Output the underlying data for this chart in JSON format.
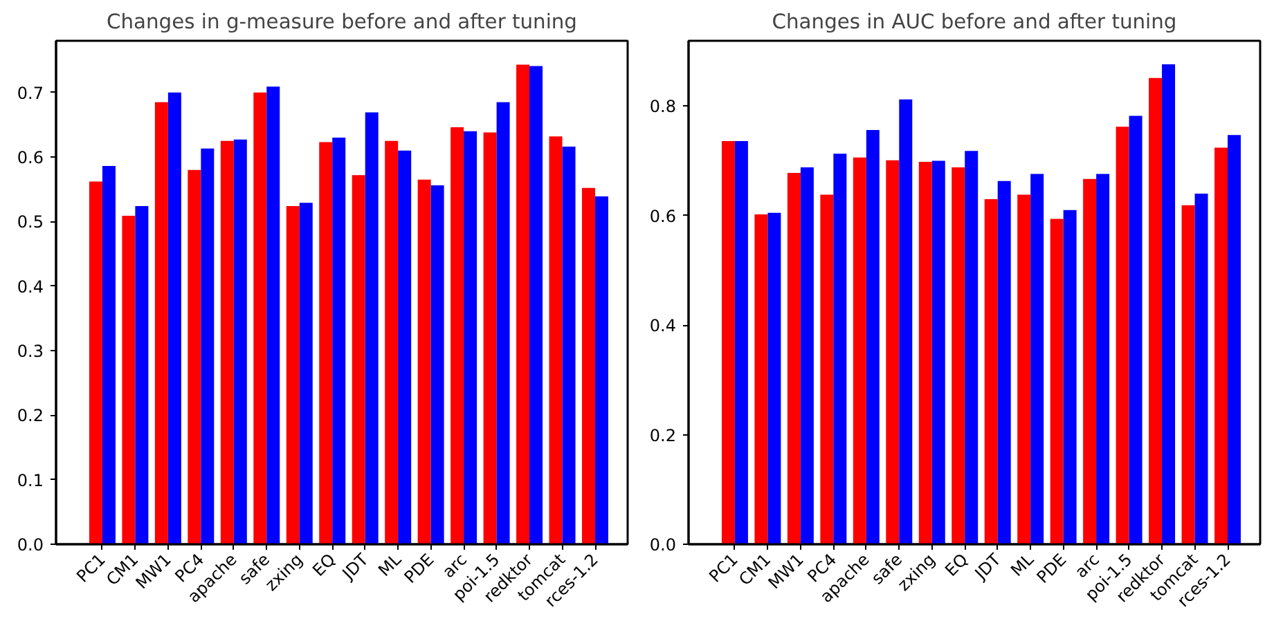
{
  "chart_data": [
    {
      "type": "bar",
      "title": "Changes in g-measure before and after tuning",
      "categories": [
        "PC1",
        "CM1",
        "MW1",
        "PC4",
        "apache",
        "safe",
        "zxing",
        "EQ",
        "JDT",
        "ML",
        "PDE",
        "arc",
        "poi-1.5",
        "redktor",
        "tomcat",
        "rces-1.2"
      ],
      "series": [
        {
          "color": "#ff0000",
          "values": [
            0.562,
            0.509,
            0.685,
            0.58,
            0.625,
            0.7,
            0.524,
            0.623,
            0.572,
            0.625,
            0.565,
            0.646,
            0.638,
            0.743,
            0.632,
            0.552
          ]
        },
        {
          "color": "#0000ff",
          "values": [
            0.586,
            0.524,
            0.7,
            0.613,
            0.627,
            0.709,
            0.529,
            0.63,
            0.669,
            0.61,
            0.556,
            0.64,
            0.685,
            0.741,
            0.616,
            0.539
          ]
        }
      ],
      "ylim": [
        0,
        0.78
      ],
      "yticks": [
        {
          "value": 0,
          "label": "0.0"
        },
        0.1,
        0.2,
        0.3,
        0.4,
        0.5,
        0.6,
        0.7
      ],
      "grid": false
    },
    {
      "type": "bar",
      "title": "Changes in AUC before and after tuning",
      "categories": [
        "PC1",
        "CM1",
        "MW1",
        "PC4",
        "apache",
        "safe",
        "zxing",
        "EQ",
        "JDT",
        "ML",
        "PDE",
        "arc",
        "poi-1.5",
        "redktor",
        "tomcat",
        "rces-1.2"
      ],
      "series": [
        {
          "color": "#ff0000",
          "values": [
            0.736,
            0.602,
            0.678,
            0.638,
            0.706,
            0.701,
            0.698,
            0.688,
            0.63,
            0.638,
            0.594,
            0.667,
            0.762,
            0.851,
            0.619,
            0.724
          ]
        },
        {
          "color": "#0000ff",
          "values": [
            0.736,
            0.605,
            0.688,
            0.713,
            0.756,
            0.812,
            0.7,
            0.718,
            0.663,
            0.676,
            0.61,
            0.676,
            0.782,
            0.876,
            0.64,
            0.747
          ]
        }
      ],
      "ylim": [
        0,
        0.919
      ],
      "yticks": [
        {
          "value": 0,
          "label": "0.0"
        },
        0.2,
        0.4,
        0.6,
        0.8
      ],
      "grid": false
    }
  ]
}
